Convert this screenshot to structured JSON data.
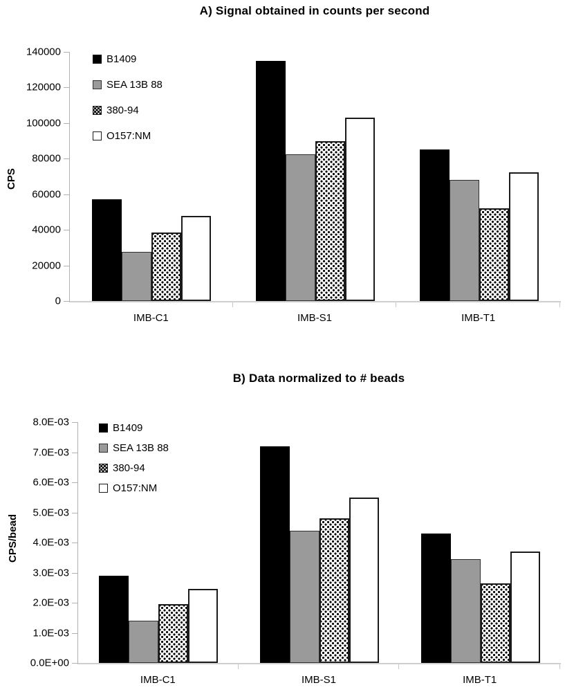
{
  "colors": {
    "bar_black": "#000000",
    "bar_gray": "#9a9a9a",
    "bar_white": "#ffffff",
    "bar_border": "#1a1a1a",
    "axis_line": "#b0b0b0",
    "text": "#000000"
  },
  "chart_data": [
    {
      "type": "bar",
      "panel": "A",
      "title": "A) Signal obtained in counts per second",
      "xlabel": "",
      "ylabel": "CPS",
      "categories": [
        "IMB-C1",
        "IMB-S1",
        "IMB-T1"
      ],
      "series": [
        {
          "name": "B1409",
          "fill": "black",
          "values": [
            57000,
            135000,
            85000
          ]
        },
        {
          "name": "SEA 13B 88",
          "fill": "gray",
          "values": [
            27500,
            82500,
            68000
          ]
        },
        {
          "name": "380-94",
          "fill": "dotted",
          "values": [
            38500,
            90000,
            52000
          ]
        },
        {
          "name": "O157:NM",
          "fill": "white",
          "values": [
            48000,
            103000,
            72500
          ]
        }
      ],
      "ylim": [
        0,
        140000
      ],
      "yticks": [
        {
          "value": 0,
          "label": "0"
        },
        {
          "value": 20000,
          "label": "20000"
        },
        {
          "value": 40000,
          "label": "40000"
        },
        {
          "value": 60000,
          "label": "60000"
        },
        {
          "value": 80000,
          "label": "80000"
        },
        {
          "value": 100000,
          "label": "100000"
        },
        {
          "value": 120000,
          "label": "120000"
        },
        {
          "value": 140000,
          "label": "140000"
        }
      ],
      "legend_position": "top-left",
      "grid": false
    },
    {
      "type": "bar",
      "panel": "B",
      "title": "B) Data normalized to # beads",
      "xlabel": "",
      "ylabel": "CPS/bead",
      "categories": [
        "IMB-C1",
        "IMB-S1",
        "IMB-T1"
      ],
      "series": [
        {
          "name": "B1409",
          "fill": "black",
          "values": [
            0.0029,
            0.0072,
            0.0043
          ]
        },
        {
          "name": "SEA 13B 88",
          "fill": "gray",
          "values": [
            0.0014,
            0.0044,
            0.00345
          ]
        },
        {
          "name": "380-94",
          "fill": "dotted",
          "values": [
            0.00195,
            0.0048,
            0.00265
          ]
        },
        {
          "name": "O157:NM",
          "fill": "white",
          "values": [
            0.00245,
            0.0055,
            0.0037
          ]
        }
      ],
      "ylim": [
        0,
        0.008
      ],
      "yticks": [
        {
          "value": 0,
          "label": "0.0E+00"
        },
        {
          "value": 0.001,
          "label": "1.0E-03"
        },
        {
          "value": 0.002,
          "label": "2.0E-03"
        },
        {
          "value": 0.003,
          "label": "3.0E-03"
        },
        {
          "value": 0.004,
          "label": "4.0E-03"
        },
        {
          "value": 0.005,
          "label": "5.0E-03"
        },
        {
          "value": 0.006,
          "label": "6.0E-03"
        },
        {
          "value": 0.007,
          "label": "7.0E-03"
        },
        {
          "value": 0.008,
          "label": "8.0E-03"
        }
      ],
      "legend_position": "top-left",
      "grid": false
    }
  ]
}
